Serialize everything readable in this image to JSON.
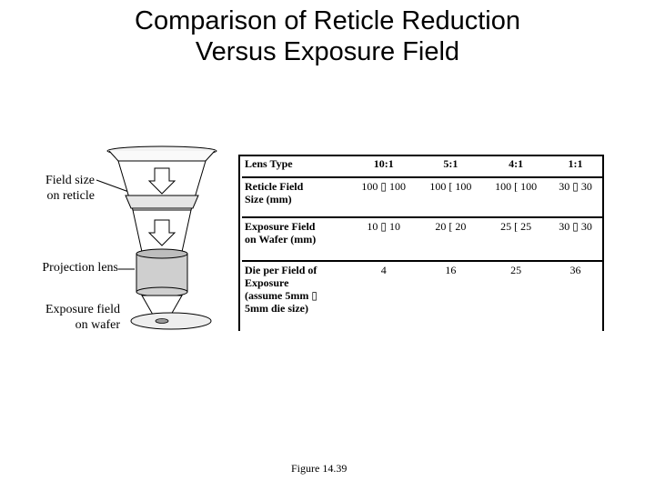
{
  "title": {
    "line1": "Comparison of Reticle Reduction",
    "line2": "Versus Exposure Field"
  },
  "diagram_labels": {
    "reticle": [
      "Field size",
      "on reticle"
    ],
    "lens": "Projection lens",
    "wafer": [
      "Exposure field",
      "on wafer"
    ]
  },
  "table": {
    "header": {
      "label": "Lens Type",
      "cols": [
        "10:1",
        "5:1",
        "4:1",
        "1:1"
      ]
    },
    "rows": [
      {
        "label": [
          "Reticle Field",
          "Size (mm)"
        ],
        "values": [
          "100 ▯ 100",
          "100 [ 100",
          "100 [ 100",
          "30 ▯ 30"
        ]
      },
      {
        "label": [
          "Exposure Field",
          "on Wafer (mm)"
        ],
        "values": [
          "10 ▯ 10",
          "20 [ 20",
          "25 [ 25",
          "30 ▯ 30"
        ]
      },
      {
        "label": [
          "Die per Field of",
          "Exposure",
          "(assume 5mm ▯",
          "5mm die size)"
        ],
        "values": [
          "4",
          "16",
          "25",
          "36"
        ]
      }
    ]
  },
  "caption": "Figure 14.39"
}
